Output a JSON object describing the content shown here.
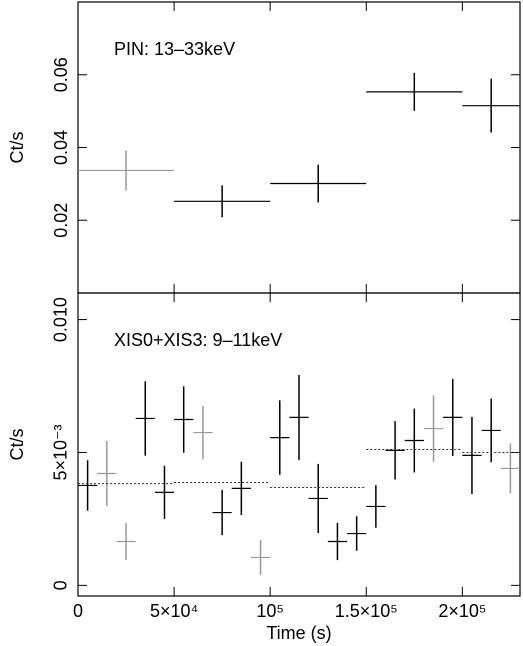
{
  "chart_data": [
    {
      "type": "errorbar",
      "ylabel": "Ct/s",
      "annotation": "PIN: 13–33keV",
      "xlim": [
        0,
        230000
      ],
      "ylim": [
        0,
        0.08
      ],
      "yticks": [
        0.02,
        0.04,
        0.06
      ],
      "series": [
        {
          "type": "points",
          "color": "#000",
          "x": [
            25000,
            75000,
            125000,
            175000,
            215000
          ],
          "xerr": [
            25000,
            25000,
            25000,
            25000,
            15000
          ],
          "values": [
            0.0337,
            0.0252,
            0.0301,
            0.0553,
            0.0515
          ],
          "yerr": [
            0.0055,
            0.0044,
            0.0052,
            0.0052,
            0.0074
          ],
          "point_colors": [
            "#999",
            "#000",
            "#000",
            "#000",
            "#000"
          ]
        }
      ]
    },
    {
      "type": "errorbar",
      "ylabel": "Ct/s",
      "annotation": "XIS0+XIS3: 9–11keV",
      "xlabel": "Time (s)",
      "xlim": [
        0,
        230000
      ],
      "ylim": [
        -0.0004,
        0.011
      ],
      "xticks": [
        0,
        {
          "value": 50000,
          "label": "5×10⁴"
        },
        {
          "value": 100000,
          "label": "10⁵"
        },
        {
          "value": 150000,
          "label": "1.5×10⁵"
        },
        {
          "value": 200000,
          "label": "2×10⁵"
        }
      ],
      "yticks": [
        0,
        {
          "value": 0.005,
          "label": "5×10⁻³"
        },
        {
          "value": 0.01,
          "label": "0.010"
        }
      ],
      "series": [
        {
          "type": "points",
          "color": "#000",
          "x": [
            5000,
            15000,
            25000,
            35000,
            45000,
            55000,
            65000,
            75000,
            85000,
            95000,
            105000,
            115000,
            125000,
            135000,
            145000,
            155000,
            165000,
            175000,
            185000,
            195000,
            205000,
            215000,
            225000
          ],
          "xerr": [
            5000,
            5000,
            5000,
            5000,
            5000,
            5000,
            5000,
            5000,
            5000,
            5000,
            5000,
            5000,
            5000,
            5000,
            5000,
            5000,
            5000,
            5000,
            5000,
            5000,
            5000,
            5000,
            5000
          ],
          "values": [
            0.00376,
            0.00421,
            0.00165,
            0.00628,
            0.0035,
            0.00624,
            0.00575,
            0.00274,
            0.00365,
            0.00105,
            0.00556,
            0.00632,
            0.00327,
            0.00165,
            0.00195,
            0.00297,
            0.00508,
            0.00545,
            0.0059,
            0.00632,
            0.00489,
            0.00583,
            0.0044
          ],
          "yerr": [
            0.00095,
            0.00122,
            0.0007,
            0.0014,
            0.001,
            0.00125,
            0.001,
            0.00085,
            0.001,
            0.00065,
            0.0014,
            0.0016,
            0.0013,
            0.0007,
            0.00065,
            0.0008,
            0.0011,
            0.0012,
            0.00125,
            0.00145,
            0.00145,
            0.0012,
            0.00094
          ],
          "point_colors": [
            "#000",
            "#999",
            "#999",
            "#000",
            "#000",
            "#000",
            "#999",
            "#000",
            "#000",
            "#999",
            "#000",
            "#000",
            "#000",
            "#000",
            "#000",
            "#000",
            "#000",
            "#000",
            "#999",
            "#000",
            "#000",
            "#000",
            "#999"
          ]
        },
        {
          "type": "step",
          "color": "#333",
          "bins": [
            0,
            50000,
            100000,
            150000,
            200000,
            230000
          ],
          "values": [
            0.00383,
            0.00387,
            0.00368,
            0.00511,
            0.005
          ]
        }
      ]
    }
  ]
}
